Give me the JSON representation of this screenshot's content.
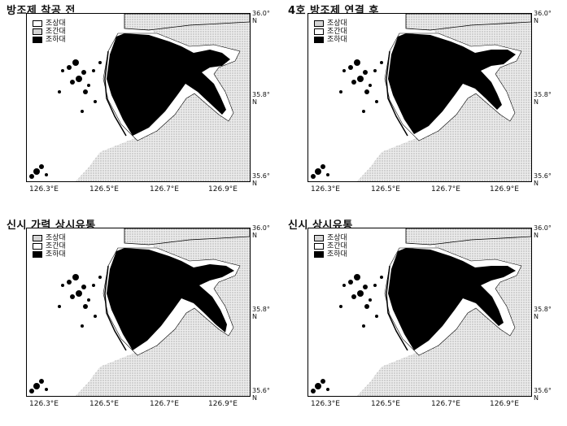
{
  "colors": {
    "supratidal": "#d9d9d9",
    "intertidal": "#ffffff",
    "subtidal": "#000000",
    "land": "#e3e3e3"
  },
  "panels": [
    {
      "title": "방조제 착공 전",
      "legend": [
        "조상대",
        "조간대",
        "조하대"
      ],
      "lat_ticks": [
        "36.0°",
        "35.8°",
        "35.6°"
      ],
      "lat_unit": "N",
      "lon_ticks": [
        "126.3°E",
        "126.5°E",
        "126.7°E",
        "126.9°E"
      ]
    },
    {
      "title": "4호 방조제 연결 후",
      "legend": [
        "조상대",
        "조간대",
        "조하대"
      ],
      "lat_ticks": [
        "36.0°",
        "35.8°",
        "35.6°"
      ],
      "lat_unit": "N",
      "lon_ticks": [
        "126.3°E",
        "126.5°E",
        "126.7°E",
        "126.9°E"
      ]
    },
    {
      "title": "신시 가력 상시유통",
      "legend": [
        "조상대",
        "조간대",
        "조하대"
      ],
      "lat_ticks": [
        "36.0°",
        "35.8°",
        "35.6°"
      ],
      "lat_unit": "N",
      "lon_ticks": [
        "126.3°E",
        "126.5°E",
        "126.7°E",
        "126.9°E"
      ]
    },
    {
      "title": "신시 상시유통",
      "legend": [
        "조상대",
        "조간대",
        "조하대"
      ],
      "lat_ticks": [
        "36.0°",
        "35.8°",
        "35.6°"
      ],
      "lat_unit": "N",
      "lon_ticks": [
        "126.3°E",
        "126.5°E",
        "126.7°E",
        "126.9°E"
      ]
    }
  ]
}
